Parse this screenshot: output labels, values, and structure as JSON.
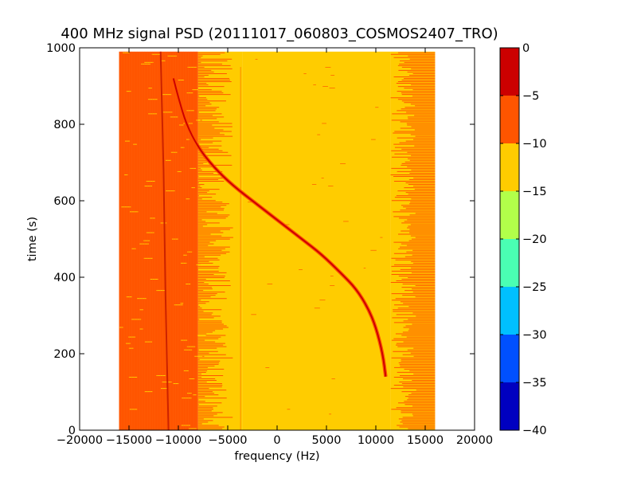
{
  "chart_data": {
    "type": "heatmap",
    "title": "400 MHz signal PSD (20111017_060803_COSMOS2407_TRO)",
    "xlabel": "frequency (Hz)",
    "ylabel": "time (s)",
    "xlim": [
      -20000,
      20000
    ],
    "ylim": [
      0,
      1000
    ],
    "x_ticks": [
      {
        "value": -20000,
        "label": "−20000"
      },
      {
        "value": -15000,
        "label": "−15000"
      },
      {
        "value": -10000,
        "label": "−10000"
      },
      {
        "value": -5000,
        "label": "−5000"
      },
      {
        "value": 0,
        "label": "0"
      },
      {
        "value": 5000,
        "label": "5000"
      },
      {
        "value": 10000,
        "label": "10000"
      },
      {
        "value": 15000,
        "label": "15000"
      },
      {
        "value": 20000,
        "label": "20000"
      }
    ],
    "y_ticks": [
      {
        "value": 0,
        "label": "0"
      },
      {
        "value": 200,
        "label": "200"
      },
      {
        "value": 400,
        "label": "400"
      },
      {
        "value": 600,
        "label": "600"
      },
      {
        "value": 800,
        "label": "800"
      },
      {
        "value": 1000,
        "label": "1000"
      }
    ],
    "data_extent": {
      "freq": [
        -16000,
        16000
      ],
      "time": [
        0,
        990
      ]
    },
    "regions": [
      {
        "freq": [
          -16000,
          -8000
        ],
        "level_range": [
          -10,
          -5
        ],
        "color": "#ff5500"
      },
      {
        "freq": [
          -8000,
          -3500
        ],
        "level_range": "mixed -10 to -5",
        "color": "#ffcc00"
      },
      {
        "freq": [
          -3500,
          11500
        ],
        "level_range": [
          -15,
          -10
        ],
        "color": "#ffcc00"
      },
      {
        "freq": [
          11500,
          16000
        ],
        "level_range": "mixed -10 to -5",
        "color": "#ffcc00"
      }
    ],
    "carrier_line": {
      "level_range": [
        -10,
        -5
      ],
      "points": [
        [
          -11800,
          990
        ],
        [
          -11500,
          680
        ],
        [
          -11300,
          350
        ],
        [
          -11000,
          0
        ]
      ]
    },
    "doppler_trace": {
      "level_range": [
        0,
        -5
      ],
      "points": [
        [
          -10500,
          920
        ],
        [
          -10000,
          870
        ],
        [
          -9200,
          800
        ],
        [
          -8000,
          740
        ],
        [
          -6500,
          690
        ],
        [
          -4500,
          640
        ],
        [
          -2000,
          590
        ],
        [
          500,
          540
        ],
        [
          2500,
          500
        ],
        [
          4500,
          460
        ],
        [
          6500,
          410
        ],
        [
          8000,
          370
        ],
        [
          9200,
          320
        ],
        [
          10000,
          270
        ],
        [
          10700,
          200
        ],
        [
          11000,
          140
        ]
      ]
    },
    "colorbar": {
      "min": -40,
      "max": 0,
      "ticks": [
        0,
        -5,
        -10,
        -15,
        -20,
        -25,
        -30,
        -35,
        -40
      ],
      "tick_labels": [
        "0",
        "−5",
        "−10",
        "−15",
        "−20",
        "−25",
        "−30",
        "−35",
        "−40"
      ],
      "bands": [
        {
          "from": -5,
          "to": 0,
          "color": "#cc0000"
        },
        {
          "from": -10,
          "to": -5,
          "color": "#ff5500"
        },
        {
          "from": -15,
          "to": -10,
          "color": "#ffcc00"
        },
        {
          "from": -20,
          "to": -15,
          "color": "#b2ff4a"
        },
        {
          "from": -25,
          "to": -20,
          "color": "#4affb3"
        },
        {
          "from": -30,
          "to": -25,
          "color": "#00c0ff"
        },
        {
          "from": -35,
          "to": -30,
          "color": "#0050ff"
        },
        {
          "from": -40,
          "to": -35,
          "color": "#0000c0"
        }
      ]
    }
  }
}
